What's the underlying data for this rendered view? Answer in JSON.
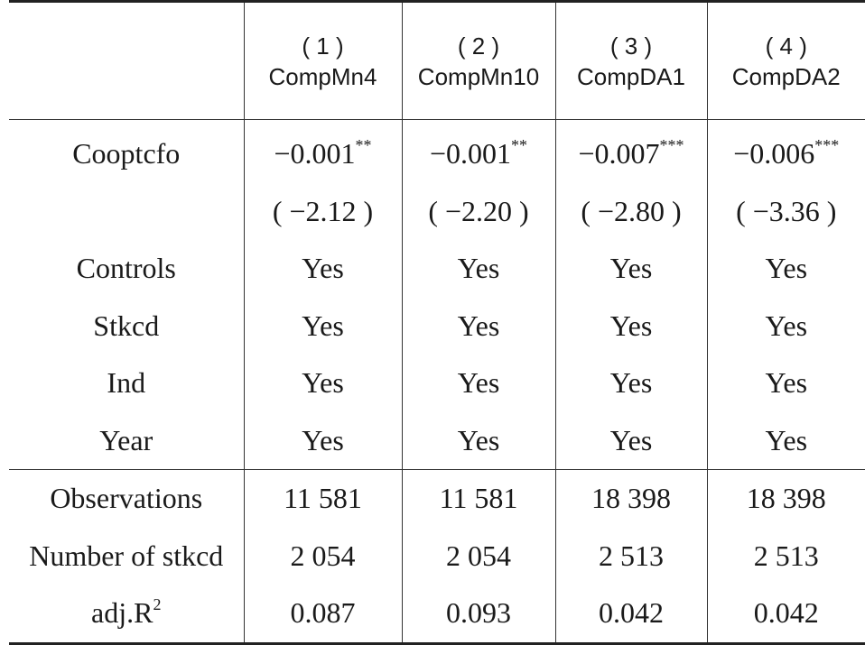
{
  "header": {
    "stub": "",
    "columns": [
      {
        "num": "( 1 )",
        "name": "CompMn4"
      },
      {
        "num": "( 2 )",
        "name": "CompMn10"
      },
      {
        "num": "( 3 )",
        "name": "CompDA1"
      },
      {
        "num": "( 4 )",
        "name": "CompDA2"
      }
    ]
  },
  "rows": {
    "cooptcfo": {
      "label": "Cooptcfo",
      "coef": [
        "−0.001",
        "−0.001",
        "−0.007",
        "−0.006"
      ],
      "stars": [
        "**",
        "**",
        "***",
        "***"
      ],
      "tstat": [
        "( −2.12 )",
        "( −2.20 )",
        "( −2.80 )",
        "( −3.36 )"
      ]
    },
    "controls": {
      "label": "Controls",
      "values": [
        "Yes",
        "Yes",
        "Yes",
        "Yes"
      ]
    },
    "stkcd": {
      "label": "Stkcd",
      "values": [
        "Yes",
        "Yes",
        "Yes",
        "Yes"
      ]
    },
    "ind": {
      "label": "Ind",
      "values": [
        "Yes",
        "Yes",
        "Yes",
        "Yes"
      ]
    },
    "year": {
      "label": "Year",
      "values": [
        "Yes",
        "Yes",
        "Yes",
        "Yes"
      ]
    },
    "observations": {
      "label": "Observations",
      "values": [
        "11 581",
        "11 581",
        "18 398",
        "18 398"
      ]
    },
    "number_of_stkcd": {
      "label": "Number of stkcd",
      "values": [
        "2 054",
        "2 054",
        "2 513",
        "2 513"
      ]
    },
    "adj_r2": {
      "label": "adj.R",
      "label_sup": "2",
      "values": [
        "0.087",
        "0.093",
        "0.042",
        "0.042"
      ]
    }
  }
}
